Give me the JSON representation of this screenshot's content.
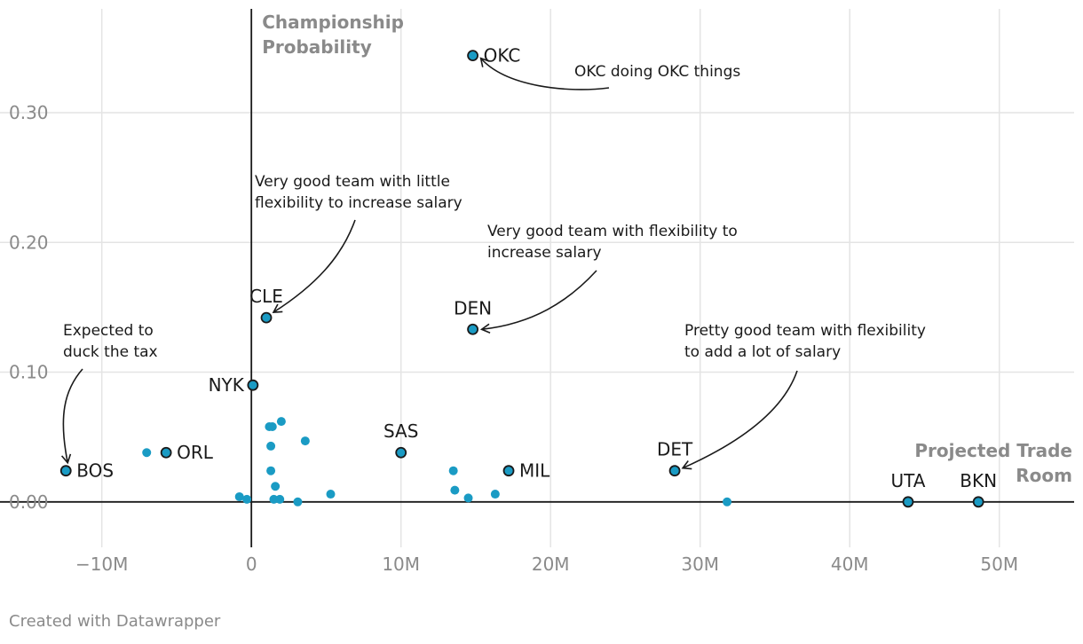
{
  "chart_data": {
    "type": "scatter",
    "title": "",
    "ylabel_lines": [
      "Championship",
      "Probability"
    ],
    "xlabel_lines": [
      "Projected Trade",
      "Room"
    ],
    "xlim": [
      -15.5,
      55
    ],
    "ylim": [
      -0.035,
      0.38
    ],
    "x_ticks": [
      {
        "value": -10,
        "label": "−10M"
      },
      {
        "value": 0,
        "label": "0"
      },
      {
        "value": 10,
        "label": "10M"
      },
      {
        "value": 20,
        "label": "20M"
      },
      {
        "value": 30,
        "label": "30M"
      },
      {
        "value": 40,
        "label": "40M"
      },
      {
        "value": 50,
        "label": "50M"
      }
    ],
    "y_ticks": [
      {
        "value": 0.0,
        "label": "0.00"
      },
      {
        "value": 0.1,
        "label": "0.10"
      },
      {
        "value": 0.2,
        "label": "0.20"
      },
      {
        "value": 0.3,
        "label": "0.30"
      }
    ],
    "colors": {
      "point": "#1a9bc4",
      "outline": "#1a1a1a",
      "grid": "#e4e4e4",
      "axis": "#1a1a1a"
    },
    "labeled_points": [
      {
        "team": "OKC",
        "x": 14.8,
        "y": 0.344,
        "label_side": "right"
      },
      {
        "team": "CLE",
        "x": 1.0,
        "y": 0.142,
        "label_side": "top"
      },
      {
        "team": "DEN",
        "x": 14.8,
        "y": 0.133,
        "label_side": "top"
      },
      {
        "team": "NYK",
        "x": 0.1,
        "y": 0.09,
        "label_side": "left"
      },
      {
        "team": "BOS",
        "x": -12.4,
        "y": 0.024,
        "label_side": "right"
      },
      {
        "team": "ORL",
        "x": -5.7,
        "y": 0.038,
        "label_side": "right"
      },
      {
        "team": "SAS",
        "x": 10.0,
        "y": 0.038,
        "label_side": "top"
      },
      {
        "team": "MIL",
        "x": 17.2,
        "y": 0.024,
        "label_side": "right"
      },
      {
        "team": "DET",
        "x": 28.3,
        "y": 0.024,
        "label_side": "top"
      },
      {
        "team": "UTA",
        "x": 43.9,
        "y": 0.0,
        "label_side": "top"
      },
      {
        "team": "BKN",
        "x": 48.6,
        "y": 0.0,
        "label_side": "top"
      }
    ],
    "unlabeled_points": [
      {
        "x": -7.0,
        "y": 0.038
      },
      {
        "x": 1.2,
        "y": 0.058
      },
      {
        "x": 1.4,
        "y": 0.058
      },
      {
        "x": 2.0,
        "y": 0.062
      },
      {
        "x": 1.3,
        "y": 0.043
      },
      {
        "x": 3.6,
        "y": 0.047
      },
      {
        "x": 1.3,
        "y": 0.024
      },
      {
        "x": 1.6,
        "y": 0.012
      },
      {
        "x": -0.8,
        "y": 0.004
      },
      {
        "x": -0.3,
        "y": 0.002
      },
      {
        "x": 1.5,
        "y": 0.002
      },
      {
        "x": 1.9,
        "y": 0.002
      },
      {
        "x": 3.1,
        "y": 0.0
      },
      {
        "x": 5.3,
        "y": 0.006
      },
      {
        "x": 13.5,
        "y": 0.024
      },
      {
        "x": 13.6,
        "y": 0.009
      },
      {
        "x": 14.5,
        "y": 0.003
      },
      {
        "x": 16.3,
        "y": 0.006
      },
      {
        "x": 31.8,
        "y": 0.0
      }
    ],
    "annotations": [
      {
        "lines": [
          "OKC doing OKC things"
        ],
        "target": "OKC"
      },
      {
        "lines": [
          "Very good team with little",
          "flexibility to increase salary"
        ],
        "target": "CLE"
      },
      {
        "lines": [
          "Very good team with flexibility to",
          "increase salary"
        ],
        "target": "DEN"
      },
      {
        "lines": [
          "Expected to",
          "duck the tax"
        ],
        "target": "BOS"
      },
      {
        "lines": [
          "Pretty good team with flexibility",
          "to add a lot of salary"
        ],
        "target": "DET"
      }
    ]
  },
  "footer": "Created with Datawrapper"
}
